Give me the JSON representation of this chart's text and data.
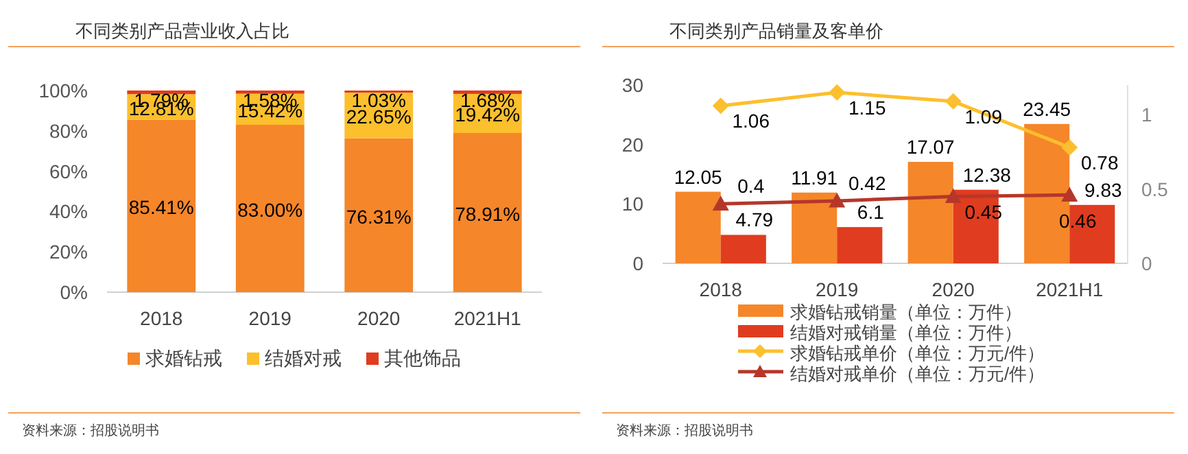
{
  "chart_data": [
    {
      "type": "bar",
      "title": "不同类别产品营业收入占比",
      "stacked": true,
      "categories": [
        "2018",
        "2019",
        "2020",
        "2021H1"
      ],
      "series": [
        {
          "name": "求婚钻戒",
          "color": "#f5862a",
          "values": [
            85.41,
            83.0,
            76.31,
            78.91
          ],
          "value_labels": [
            "85.41%",
            "83.00%",
            "76.31%",
            "78.91%"
          ]
        },
        {
          "name": "结婚对戒",
          "color": "#fcbf2d",
          "values": [
            12.81,
            15.42,
            22.65,
            19.42
          ],
          "value_labels": [
            "12.81%",
            "15.42%",
            "22.65%",
            "19.42%"
          ]
        },
        {
          "name": "其他饰品",
          "color": "#e03c1f",
          "values": [
            1.79,
            1.58,
            1.03,
            1.68
          ],
          "value_labels": [
            "1.79%",
            "1.58%",
            "1.03%",
            "1.68%"
          ]
        }
      ],
      "ylim": [
        0,
        100
      ],
      "yticks": [
        {
          "value": 0,
          "label": "0%"
        },
        {
          "value": 20,
          "label": "20%"
        },
        {
          "value": 40,
          "label": "40%"
        },
        {
          "value": 60,
          "label": "60%"
        },
        {
          "value": 80,
          "label": "80%"
        },
        {
          "value": 100,
          "label": "100%"
        }
      ],
      "legend": "bottom",
      "annotations": [
        "资料来源：招股说明书"
      ]
    },
    {
      "type": "bar",
      "title": "不同类别产品销量及客单价",
      "categories": [
        "2018",
        "2019",
        "2020",
        "2021H1"
      ],
      "series": [
        {
          "name": "求婚钻戒销量（单位：万件）",
          "color": "#f5862a",
          "values": [
            12.05,
            11.91,
            17.07,
            23.45
          ]
        },
        {
          "name": "结婚对戒销量（单位：万件）",
          "color": "#e03c1f",
          "values": [
            4.79,
            6.1,
            12.38,
            9.83
          ]
        },
        {
          "name": "求婚钻戒单价（单位：万元/件）",
          "type": "line",
          "axis": "y2",
          "marker": "diamond",
          "color": "#fcbf2d",
          "values": [
            1.06,
            1.15,
            1.09,
            0.78
          ]
        },
        {
          "name": "结婚对戒单价（单位：万元/件）",
          "type": "line",
          "axis": "y2",
          "marker": "triangle",
          "color": "#b5372a",
          "values": [
            0.4,
            0.42,
            0.45,
            0.46
          ]
        }
      ],
      "data_labels": true,
      "ylim": [
        0,
        30
      ],
      "yticks": [
        0,
        10,
        20,
        30
      ],
      "y2lim": [
        0,
        1.2
      ],
      "y2ticks": [
        0,
        0.5,
        1
      ],
      "legend": "bottom",
      "annotations": [
        "资料来源：招股说明书"
      ]
    }
  ]
}
